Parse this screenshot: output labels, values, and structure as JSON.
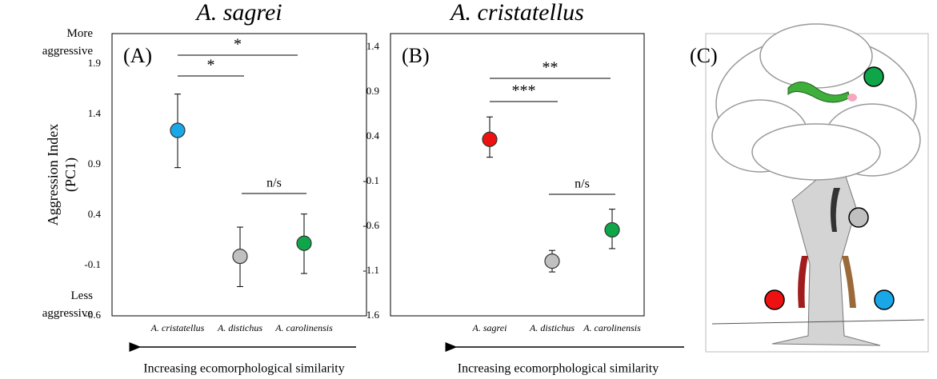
{
  "chart_data": [
    {
      "type": "dot",
      "title": "A. sagrei",
      "panel_label": "(A)",
      "ylabel": [
        "Aggression Index",
        "(PC1)"
      ],
      "top_note": "More aggressive",
      "bottom_note": "Less aggressive",
      "categories": [
        "A. cristatellus",
        "A. distichus",
        "A. carolinensis"
      ],
      "values": [
        1.24,
        -0.01,
        0.12
      ],
      "ci_low": [
        0.87,
        -0.31,
        -0.18
      ],
      "ci_high": [
        1.6,
        0.28,
        0.41
      ],
      "colors": [
        "#1aa7e8",
        "#c0c0c0",
        "#0fa64a"
      ],
      "annotations": [
        "*",
        "*",
        "n/s"
      ],
      "xlabel": "Increasing ecomorphological similarity",
      "ylim": [
        -0.6,
        2.2
      ],
      "yticks": [
        -0.6,
        -0.1,
        0.4,
        0.9,
        1.4,
        1.9
      ]
    },
    {
      "type": "dot",
      "title": "A. cristatellus",
      "panel_label": "(B)",
      "categories": [
        "A. sagrei",
        "A. distichus",
        "A. carolinensis"
      ],
      "values": [
        0.37,
        -0.99,
        -0.64
      ],
      "ci_low": [
        0.17,
        -1.11,
        -0.85
      ],
      "ci_high": [
        0.62,
        -0.87,
        -0.41
      ],
      "colors": [
        "#ee1111",
        "#c0c0c0",
        "#0fa64a"
      ],
      "annotations": [
        "**",
        "***",
        "n/s"
      ],
      "xlabel": "Increasing ecomorphological similarity",
      "ylim": [
        -1.6,
        1.55
      ],
      "yticks": [
        -1.6,
        -1.1,
        -0.6,
        -0.1,
        0.4,
        0.9,
        1.4
      ]
    }
  ],
  "panel_c": {
    "label": "(C)"
  }
}
